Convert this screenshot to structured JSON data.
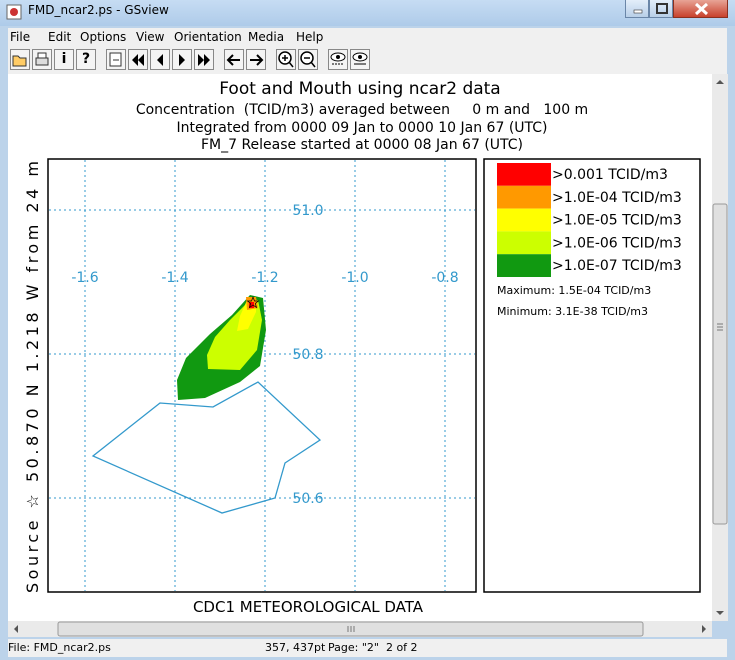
{
  "window": {
    "title": "FMD_ncar2.ps - GSview"
  },
  "menu": [
    "File",
    "Edit",
    "Options",
    "View",
    "Orientation",
    "Media",
    "Help"
  ],
  "toolbar": {
    "info": "i",
    "help": "?"
  },
  "document": {
    "title": "Foot and Mouth using ncar2 data",
    "subtitle_lines": [
      "Concentration  (TCID/m3) averaged between     0 m and   100 m",
      "Integrated from 0000 09 Jan to 0000 10 Jan 67 (UTC)",
      "FM_7 Release started at 0000 08 Jan 67 (UTC)"
    ],
    "source_label": "Source ☆ 50.870 N 1.218 W from 24 m",
    "footer": "CDC1 METEOROLOGICAL DATA",
    "longitude_labels": [
      "-1.6",
      "-1.4",
      "-1.2",
      "-1.0",
      "-0.8"
    ],
    "latitude_labels": [
      "51.0",
      "50.8",
      "50.6"
    ],
    "legend": {
      "items": [
        {
          "label": ">0.001 TCID/m3",
          "color": "#ff0000"
        },
        {
          "label": ">1.0E-04 TCID/m3",
          "color": "#ff9900"
        },
        {
          "label": ">1.0E-05 TCID/m3",
          "color": "#ffff00"
        },
        {
          "label": ">1.0E-06 TCID/m3",
          "color": "#ccff00"
        },
        {
          "label": ">1.0E-07 TCID/m3",
          "color": "#119911"
        }
      ],
      "maximum": "Maximum: 1.5E-04 TCID/m3",
      "minimum": "Minimum: 3.1E-38 TCID/m3"
    }
  },
  "status": {
    "file": "File: FMD_ncar2.ps",
    "position": "357, 437pt",
    "page": "Page: \"2\"  2 of 2"
  }
}
